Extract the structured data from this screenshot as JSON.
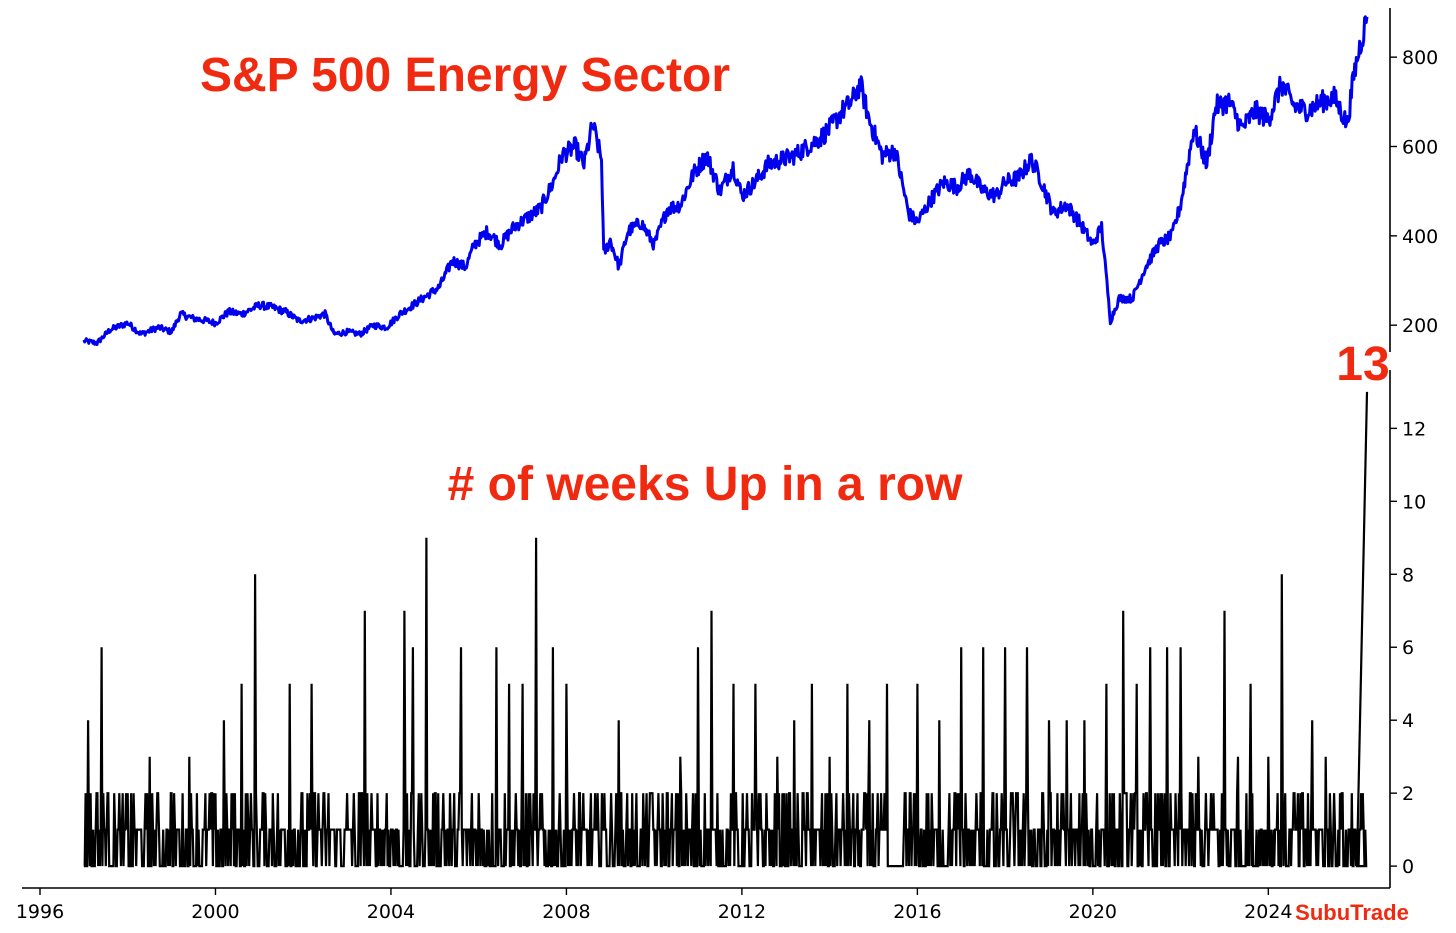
{
  "chart_data": [
    {
      "type": "line",
      "title": "S&P 500 Energy Sector",
      "xlabel": "",
      "ylabel": "",
      "xlim": [
        1996,
        2026.5
      ],
      "ylim": [
        140,
        910
      ],
      "yticks": [
        200,
        400,
        600,
        800
      ],
      "y_axis_side": "right",
      "color": "#0000ee",
      "series": [
        {
          "x": [
            1997.0,
            1997.3,
            1997.6,
            1998.0,
            1998.3,
            1998.7,
            1999.0,
            1999.2,
            1999.5,
            1999.8,
            2000.0,
            2000.3,
            2000.6,
            2001.0,
            2001.3,
            2001.6,
            2001.9,
            2002.2,
            2002.5,
            2002.7,
            2003.0,
            2003.3,
            2003.6,
            2003.9,
            2004.2,
            2004.5,
            2004.8,
            2005.1,
            2005.4,
            2005.7,
            2005.9,
            2006.2,
            2006.5,
            2006.8,
            2007.1,
            2007.4,
            2007.7,
            2007.9,
            2008.2,
            2008.4,
            2008.6,
            2008.8,
            2008.85,
            2009.0,
            2009.2,
            2009.4,
            2009.7,
            2010.0,
            2010.3,
            2010.6,
            2010.9,
            2011.2,
            2011.5,
            2011.8,
            2012.0,
            2012.3,
            2012.6,
            2012.9,
            2013.2,
            2013.5,
            2013.8,
            2014.0,
            2014.3,
            2014.5,
            2014.7,
            2014.9,
            2015.2,
            2015.5,
            2015.8,
            2016.0,
            2016.3,
            2016.6,
            2016.9,
            2017.2,
            2017.5,
            2017.8,
            2018.0,
            2018.3,
            2018.6,
            2018.8,
            2019.1,
            2019.4,
            2019.7,
            2020.0,
            2020.2,
            2020.4,
            2020.6,
            2020.9,
            2021.2,
            2021.5,
            2021.8,
            2022.0,
            2022.3,
            2022.6,
            2022.8,
            2023.1,
            2023.4,
            2023.7,
            2024.0,
            2024.3,
            2024.6,
            2024.9,
            2025.2,
            2025.5,
            2025.8,
            2025.95,
            2026.1,
            2026.25
          ],
          "y": [
            165,
            160,
            190,
            205,
            180,
            195,
            185,
            225,
            215,
            210,
            205,
            230,
            225,
            245,
            240,
            230,
            210,
            215,
            225,
            180,
            185,
            180,
            200,
            195,
            225,
            245,
            265,
            285,
            345,
            330,
            380,
            410,
            380,
            420,
            440,
            460,
            520,
            580,
            600,
            560,
            650,
            570,
            360,
            390,
            330,
            410,
            430,
            380,
            460,
            470,
            540,
            580,
            500,
            555,
            490,
            520,
            560,
            570,
            580,
            600,
            620,
            640,
            680,
            700,
            740,
            660,
            580,
            590,
            450,
            430,
            480,
            520,
            510,
            540,
            500,
            490,
            520,
            530,
            570,
            530,
            450,
            470,
            430,
            380,
            420,
            210,
            260,
            260,
            330,
            380,
            400,
            470,
            640,
            560,
            690,
            700,
            640,
            680,
            660,
            740,
            690,
            680,
            700,
            710,
            650,
            760,
            830,
            890
          ]
        }
      ]
    },
    {
      "type": "line",
      "title": "# of weeks Up in a row",
      "xlabel": "",
      "ylabel": "",
      "xlim": [
        1996,
        2026.5
      ],
      "ylim": [
        -0.6,
        13.6
      ],
      "yticks": [
        0,
        2,
        4,
        6,
        8,
        10,
        12
      ],
      "xticks": [
        1996,
        2000,
        2004,
        2008,
        2012,
        2016,
        2020,
        2024
      ],
      "y_axis_side": "right",
      "color": "#000000",
      "series": [
        {
          "x": [
            1997.1,
            1997.3,
            1997.4,
            1998.0,
            1998.5,
            1999.0,
            1999.4,
            1999.9,
            2000.2,
            2000.4,
            2000.6,
            2000.9,
            2001.3,
            2001.7,
            2002.2,
            2003.0,
            2003.4,
            2003.9,
            2004.3,
            2004.5,
            2004.8,
            2005.2,
            2005.6,
            2006.0,
            2006.4,
            2006.7,
            2007.0,
            2007.3,
            2007.7,
            2008.0,
            2008.3,
            2008.8,
            2009.2,
            2009.5,
            2009.9,
            2010.3,
            2010.6,
            2011.0,
            2011.3,
            2011.8,
            2012.3,
            2012.8,
            2013.2,
            2013.6,
            2014.0,
            2014.4,
            2014.9,
            2015.3,
            2016.0,
            2016.5,
            2017.0,
            2017.5,
            2018.0,
            2018.5,
            2019.0,
            2019.4,
            2019.8,
            2020.1,
            2020.3,
            2020.7,
            2021.0,
            2021.3,
            2021.7,
            2022.0,
            2022.4,
            2022.7,
            2023.0,
            2023.3,
            2023.6,
            2024.0,
            2024.3,
            2024.6,
            2025.0,
            2025.3,
            2025.5,
            2025.7,
            2025.9,
            2026.25
          ],
          "y": [
            4,
            2,
            6,
            2,
            3,
            2,
            3,
            2,
            4,
            2,
            5,
            8,
            2,
            5,
            5,
            2,
            7,
            2,
            7,
            6,
            9,
            2,
            6,
            2,
            6,
            5,
            5,
            9,
            6,
            5,
            2,
            2,
            4,
            2,
            2,
            2,
            3,
            6,
            7,
            5,
            5,
            3,
            4,
            5,
            3,
            5,
            4,
            5,
            5,
            4,
            6,
            6,
            6,
            6,
            4,
            4,
            4,
            2,
            5,
            7,
            5,
            6,
            6,
            6,
            3,
            2,
            7,
            3,
            5,
            3,
            8,
            2,
            4,
            3,
            2,
            2,
            2,
            13
          ]
        }
      ],
      "annotations": [
        {
          "x": 2026.25,
          "y": 13,
          "text": "13"
        }
      ]
    }
  ],
  "brand": "SubuTrade"
}
